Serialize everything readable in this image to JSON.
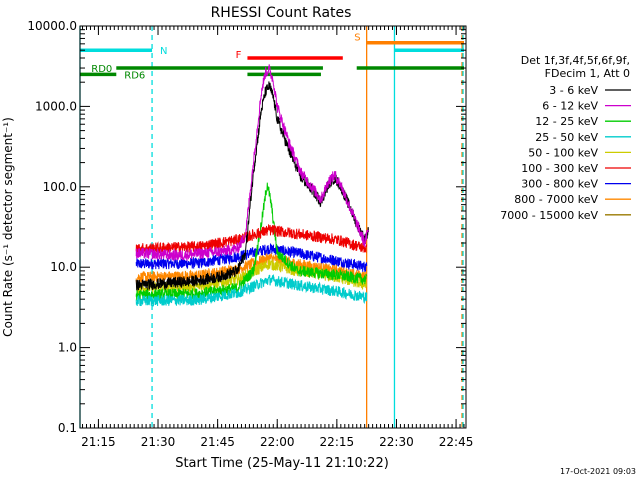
{
  "chart_data": {
    "type": "line",
    "title": "RHESSI Count Rates",
    "xlabel": "Start Time (25-May-11 21:10:22)",
    "ylabel": "Count Rate (s⁻¹ detector segment⁻¹)",
    "y_scale": "log",
    "ylim": [
      0.1,
      10000.0
    ],
    "y_tick_labels": [
      "10000.0",
      "1000.0",
      "100.0",
      "10.0",
      "1.0",
      "0.1"
    ],
    "xlim": [
      "21:10:22",
      "22:47:30"
    ],
    "x_tick_labels": [
      "21:15",
      "21:30",
      "21:45",
      "22:00",
      "22:15",
      "22:30",
      "22:45"
    ],
    "legend_header": [
      "Det 1f,3f,4f,5f,6f,9f,",
      "FDecim 1, Att 0"
    ],
    "legend_placement": "right",
    "series": [
      {
        "name": "3 - 6 keV",
        "color": "#000000",
        "points": [
          [
            "21:24:30",
            6.0
          ],
          [
            "21:30:00",
            6.2
          ],
          [
            "21:40:00",
            6.8
          ],
          [
            "21:45:00",
            7.5
          ],
          [
            "21:50:00",
            9.0
          ],
          [
            "21:52:00",
            15.0
          ],
          [
            "21:54:00",
            150.0
          ],
          [
            "21:56:00",
            900.0
          ],
          [
            "21:57:00",
            1500.0
          ],
          [
            "21:58:00",
            1800.0
          ],
          [
            "21:59:00",
            1300.0
          ],
          [
            "22:00:00",
            700.0
          ],
          [
            "22:03:00",
            280.0
          ],
          [
            "22:06:00",
            130.0
          ],
          [
            "22:09:00",
            90.0
          ],
          [
            "22:11:00",
            65.0
          ],
          [
            "22:13:00",
            110.0
          ],
          [
            "22:14:30",
            130.0
          ],
          [
            "22:16:00",
            100.0
          ],
          [
            "22:18:00",
            60.0
          ],
          [
            "22:20:00",
            35.0
          ],
          [
            "22:22:00",
            22.0
          ],
          [
            "22:23:00",
            28.0
          ]
        ]
      },
      {
        "name": "6 - 12 keV",
        "color": "#cc00cc",
        "points": [
          [
            "21:24:30",
            15.0
          ],
          [
            "21:35:00",
            14.0
          ],
          [
            "21:45:00",
            15.5
          ],
          [
            "21:50:00",
            17.0
          ],
          [
            "21:52:00",
            25.0
          ],
          [
            "21:54:00",
            200.0
          ],
          [
            "21:56:00",
            1500.0
          ],
          [
            "21:57:00",
            2600.0
          ],
          [
            "21:58:00",
            2900.0
          ],
          [
            "21:59:00",
            2100.0
          ],
          [
            "22:00:00",
            1000.0
          ],
          [
            "22:03:00",
            350.0
          ],
          [
            "22:06:00",
            150.0
          ],
          [
            "22:09:00",
            95.0
          ],
          [
            "22:11:00",
            70.0
          ],
          [
            "22:13:00",
            120.0
          ],
          [
            "22:14:30",
            140.0
          ],
          [
            "22:16:00",
            105.0
          ],
          [
            "22:18:00",
            60.0
          ],
          [
            "22:20:00",
            35.0
          ],
          [
            "22:22:00",
            20.0
          ],
          [
            "22:23:00",
            30.0
          ]
        ]
      },
      {
        "name": "12 - 25 keV",
        "color": "#00cc00",
        "points": [
          [
            "21:24:30",
            4.5
          ],
          [
            "21:40:00",
            4.7
          ],
          [
            "21:50:00",
            5.5
          ],
          [
            "21:54:00",
            9.0
          ],
          [
            "21:56:00",
            35.0
          ],
          [
            "21:57:30",
            110.0
          ],
          [
            "21:58:30",
            60.0
          ],
          [
            "22:00:00",
            15.0
          ],
          [
            "22:05:00",
            9.0
          ],
          [
            "22:15:00",
            8.0
          ],
          [
            "22:22:30",
            7.0
          ]
        ]
      },
      {
        "name": "25 - 50 keV",
        "color": "#00cccc",
        "points": [
          [
            "21:24:30",
            3.8
          ],
          [
            "21:40:00",
            3.9
          ],
          [
            "21:50:00",
            4.8
          ],
          [
            "21:58:00",
            7.0
          ],
          [
            "22:05:00",
            6.0
          ],
          [
            "22:15:00",
            5.0
          ],
          [
            "22:22:30",
            4.2
          ]
        ]
      },
      {
        "name": "50 - 100 keV",
        "color": "#cccc00",
        "points": [
          [
            "21:24:30",
            5.5
          ],
          [
            "21:40:00",
            5.8
          ],
          [
            "21:50:00",
            7.0
          ],
          [
            "21:58:00",
            11.0
          ],
          [
            "22:05:00",
            9.0
          ],
          [
            "22:15:00",
            7.5
          ],
          [
            "22:22:30",
            6.0
          ]
        ]
      },
      {
        "name": "100 - 300 keV",
        "color": "#ee0000",
        "points": [
          [
            "21:24:30",
            17.0
          ],
          [
            "21:40:00",
            18.0
          ],
          [
            "21:50:00",
            22.0
          ],
          [
            "21:58:00",
            29.0
          ],
          [
            "22:05:00",
            26.0
          ],
          [
            "22:15:00",
            22.0
          ],
          [
            "22:22:30",
            17.0
          ]
        ]
      },
      {
        "name": "300 - 800 keV",
        "color": "#0000ee",
        "points": [
          [
            "21:24:30",
            11.0
          ],
          [
            "21:40:00",
            11.2
          ],
          [
            "21:50:00",
            13.5
          ],
          [
            "21:58:00",
            17.0
          ],
          [
            "22:05:00",
            15.0
          ],
          [
            "22:15:00",
            12.0
          ],
          [
            "22:22:30",
            10.0
          ]
        ]
      },
      {
        "name": "800 - 7000 keV",
        "color": "#ff8800",
        "points": [
          [
            "21:24:30",
            7.5
          ],
          [
            "21:40:00",
            7.8
          ],
          [
            "21:50:00",
            9.5
          ],
          [
            "21:58:00",
            13.0
          ],
          [
            "22:05:00",
            11.0
          ],
          [
            "22:15:00",
            9.0
          ],
          [
            "22:22:30",
            7.5
          ]
        ]
      },
      {
        "name": "7000 - 15000 keV",
        "color": "#997a00",
        "points": []
      }
    ],
    "annotations": {
      "segments": [
        {
          "label": "N",
          "color": "#00dddd",
          "y": 5000,
          "ranges": [
            [
              "21:10:22",
              "21:28:30"
            ],
            [
              "22:29:30",
              "22:47:00"
            ]
          ]
        },
        {
          "label": "S",
          "color": "#ff7f00",
          "y": 6200,
          "ranges": [
            [
              "22:22:30",
              "22:47:00"
            ]
          ]
        },
        {
          "label": "F",
          "color": "#ff0000",
          "y": 4000,
          "ranges": [
            [
              "21:52:30",
              "22:16:30"
            ]
          ]
        },
        {
          "label": "RD0",
          "color": "#008800",
          "y": 3000,
          "ranges": [
            [
              "21:19:30",
              "22:11:30"
            ],
            [
              "22:20:00",
              "22:47:00"
            ]
          ]
        },
        {
          "label": "RD6",
          "color": "#008800",
          "y": 2500,
          "ranges": [
            [
              "21:10:22",
              "21:19:30"
            ],
            [
              "21:52:30",
              "22:11:00"
            ]
          ]
        }
      ],
      "vertical_lines": [
        {
          "time": "21:10:22",
          "color": "#00dddd",
          "style": "solid"
        },
        {
          "time": "21:28:30",
          "color": "#00dddd",
          "style": "dashed"
        },
        {
          "time": "22:22:30",
          "color": "#ff7f00",
          "style": "solid"
        },
        {
          "time": "22:29:30",
          "color": "#00dddd",
          "style": "solid"
        },
        {
          "time": "22:46:30",
          "color": "#ff7f00",
          "style": "dashed"
        },
        {
          "time": "22:46:45",
          "color": "#00dddd",
          "style": "dashed"
        }
      ]
    },
    "timestamp_text": "17-Oct-2021 09:03",
    "grid": false
  }
}
